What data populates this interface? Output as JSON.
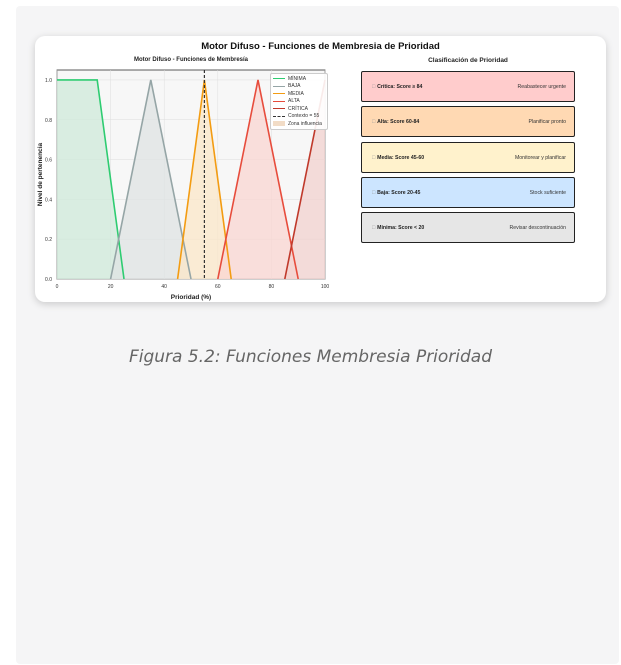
{
  "figure_title": "Motor Difuso - Funciones de Membresia de Prioridad",
  "caption": "Figura 5.2: Funciones Membresia Prioridad",
  "chart_data": [
    {
      "type": "line",
      "title": "Motor Difuso - Funciones de Membresía",
      "xlabel": "Prioridad (%)",
      "ylabel": "Nivel de pertenencia",
      "xlim": [
        0,
        100
      ],
      "ylim": [
        0,
        1.05
      ],
      "xticks": [
        "0",
        "20",
        "40",
        "60",
        "80",
        "100"
      ],
      "yticks": [
        "0.0",
        "0.2",
        "0.4",
        "0.6",
        "0.8",
        "1.0"
      ],
      "grid": true,
      "legend_position": "top-right",
      "series": [
        {
          "name": "MÍNIMA",
          "color": "#2ecc71",
          "fill": "#cfe9d9",
          "x": [
            0,
            15,
            25
          ],
          "y": [
            1,
            1,
            0
          ]
        },
        {
          "name": "BAJA",
          "color": "#95a5a6",
          "fill": "#dfe3e3",
          "x": [
            20,
            35,
            50
          ],
          "y": [
            0,
            1,
            0
          ]
        },
        {
          "name": "MEDIA",
          "color": "#f39c12",
          "fill": "#fbe7c8",
          "x": [
            45,
            55,
            65
          ],
          "y": [
            0,
            1,
            0
          ]
        },
        {
          "name": "ALTA",
          "color": "#e74c3c",
          "fill": "#f9d6d2",
          "x": [
            60,
            75,
            90
          ],
          "y": [
            0,
            1,
            0
          ]
        },
        {
          "name": "CRÍTICA",
          "color": "#c0392b",
          "fill": "#f2d2cf",
          "x": [
            85,
            100
          ],
          "y": [
            0,
            1
          ]
        }
      ],
      "threshold": {
        "label": "Contexto = 55",
        "x": 55,
        "color": "#333333"
      },
      "influence_zone": {
        "label": "Zona influencia",
        "color": "#f2dcc6"
      }
    },
    {
      "type": "table",
      "title": "Clasificación de Prioridad",
      "rows": [
        {
          "label": "Crítica: Score ≥ 84",
          "action": "Reabastecer urgente",
          "bg": "#ffcccc"
        },
        {
          "label": "Alta: Score 60-84",
          "action": "Planificar pronto",
          "bg": "#ffd9b3"
        },
        {
          "label": "Media: Score 45-60",
          "action": "Monitorear y planificar",
          "bg": "#fff2cc"
        },
        {
          "label": "Baja: Score 20-45",
          "action": "Stock suficiente",
          "bg": "#cce5ff"
        },
        {
          "label": "Mínima: Score < 20",
          "action": "Revisar descontinuación",
          "bg": "#e6e6e6"
        }
      ]
    }
  ]
}
